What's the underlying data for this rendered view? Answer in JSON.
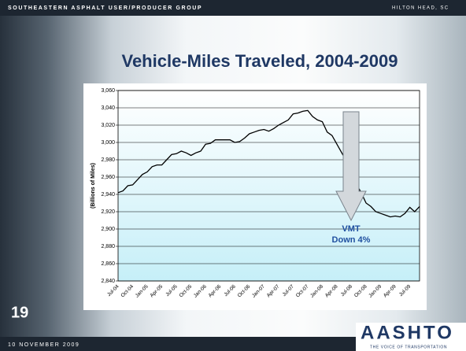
{
  "header": {
    "left": "SOUTHEASTERN ASPHALT USER/PRODUCER GROUP",
    "right": "HILTON HEAD, SC"
  },
  "footer": {
    "date": "10 NOVEMBER 2009",
    "slide_number": "19",
    "logo": "AASHTO",
    "logo_tagline": "THE VOICE OF TRANSPORTATION"
  },
  "chart_data": {
    "type": "line",
    "title": "Vehicle-Miles Traveled, 2004-2009",
    "y_label": "(Billions of Miles)",
    "annotation": [
      "VMT",
      "Down 4%"
    ],
    "categories": [
      "Jul-04",
      null,
      null,
      "Oct-04",
      null,
      null,
      "Jan-05",
      null,
      null,
      "Apr-05",
      null,
      null,
      "Jul-05",
      null,
      null,
      "Oct-05",
      null,
      null,
      "Jan-06",
      null,
      null,
      "Apr-06",
      null,
      null,
      "Jul-06",
      null,
      null,
      "Oct-06",
      null,
      null,
      "Jan-07",
      null,
      null,
      "Apr-07",
      null,
      null,
      "Jul-07",
      null,
      null,
      "Oct-07",
      null,
      null,
      "Jan-08",
      null,
      null,
      "Apr-08",
      null,
      null,
      "Jul-08",
      null,
      null,
      "Oct-08",
      null,
      null,
      "Jan-09",
      null,
      null,
      "Apr-09",
      null,
      null,
      "Jul-09",
      null,
      null
    ],
    "values": [
      2942,
      2944,
      2950,
      2951,
      2957,
      2963,
      2966,
      2972,
      2974,
      2974,
      2980,
      2986,
      2987,
      2990,
      2988,
      2985,
      2988,
      2990,
      2998,
      2999,
      3003,
      3003,
      3003,
      3003,
      3000,
      3001,
      3005,
      3010,
      3012,
      3014,
      3015,
      3013,
      3016,
      3020,
      3023,
      3026,
      3033,
      3034,
      3036,
      3037,
      3030,
      3026,
      3024,
      3012,
      3008,
      2998,
      2988,
      2978,
      2965,
      2952,
      2942,
      2930,
      2926,
      2920,
      2918,
      2916,
      2914,
      2915,
      2914,
      2918,
      2925,
      2920,
      2926
    ],
    "color": "#000000",
    "ylim": [
      2840,
      3060
    ],
    "yticks": [
      {
        "value": 2840,
        "label": "2,840"
      },
      {
        "value": 2860,
        "label": "2,860"
      },
      {
        "value": 2880,
        "label": "2,880"
      },
      {
        "value": 2900,
        "label": "2,900"
      },
      {
        "value": 2920,
        "label": "2,920"
      },
      {
        "value": 2940,
        "label": "2,940"
      },
      {
        "value": 2960,
        "label": "2,960"
      },
      {
        "value": 2980,
        "label": "2,980"
      },
      {
        "value": 3000,
        "label": "3,000"
      },
      {
        "value": 3020,
        "label": "3,020"
      },
      {
        "value": 3040,
        "label": "3,040"
      },
      {
        "value": 3060,
        "label": "3,060"
      }
    ],
    "grid": true
  }
}
